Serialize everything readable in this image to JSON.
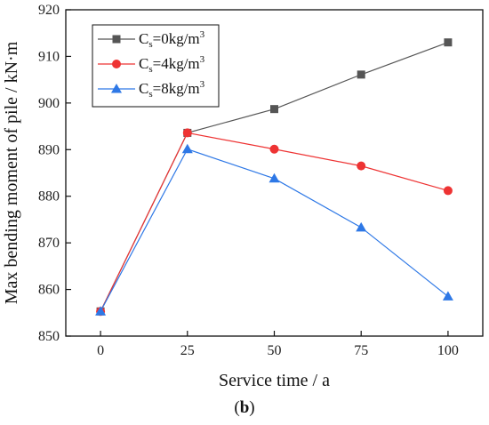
{
  "chart_data": {
    "type": "line",
    "xlabel": "Service time / a",
    "ylabel": "Max bending moment of pile / kN·m",
    "panel_label": "b",
    "x": [
      0,
      25,
      50,
      75,
      100
    ],
    "xlim": [
      -10,
      110
    ],
    "ylim": [
      850,
      920
    ],
    "xticks": [
      0,
      25,
      50,
      75,
      100
    ],
    "yticks": [
      850,
      860,
      870,
      880,
      890,
      900,
      910,
      920
    ],
    "grid": false,
    "legend_position": "top-left",
    "series": [
      {
        "name_main": "C",
        "name_sub": "s",
        "name_rest": "=0kg/m",
        "name_sup": "3",
        "marker": "square",
        "color": "#555555",
        "values": [
          855.3,
          893.6,
          898.7,
          906.1,
          913.0
        ]
      },
      {
        "name_main": "C",
        "name_sub": "s",
        "name_rest": "=4kg/m",
        "name_sup": "3",
        "marker": "circle",
        "color": "#ee3333",
        "values": [
          855.3,
          893.6,
          890.1,
          886.5,
          881.2
        ]
      },
      {
        "name_main": "C",
        "name_sub": "s",
        "name_rest": "=8kg/m",
        "name_sup": "3",
        "marker": "triangle",
        "color": "#2e78e6",
        "values": [
          855.3,
          890.1,
          883.8,
          873.3,
          858.5
        ]
      }
    ]
  }
}
